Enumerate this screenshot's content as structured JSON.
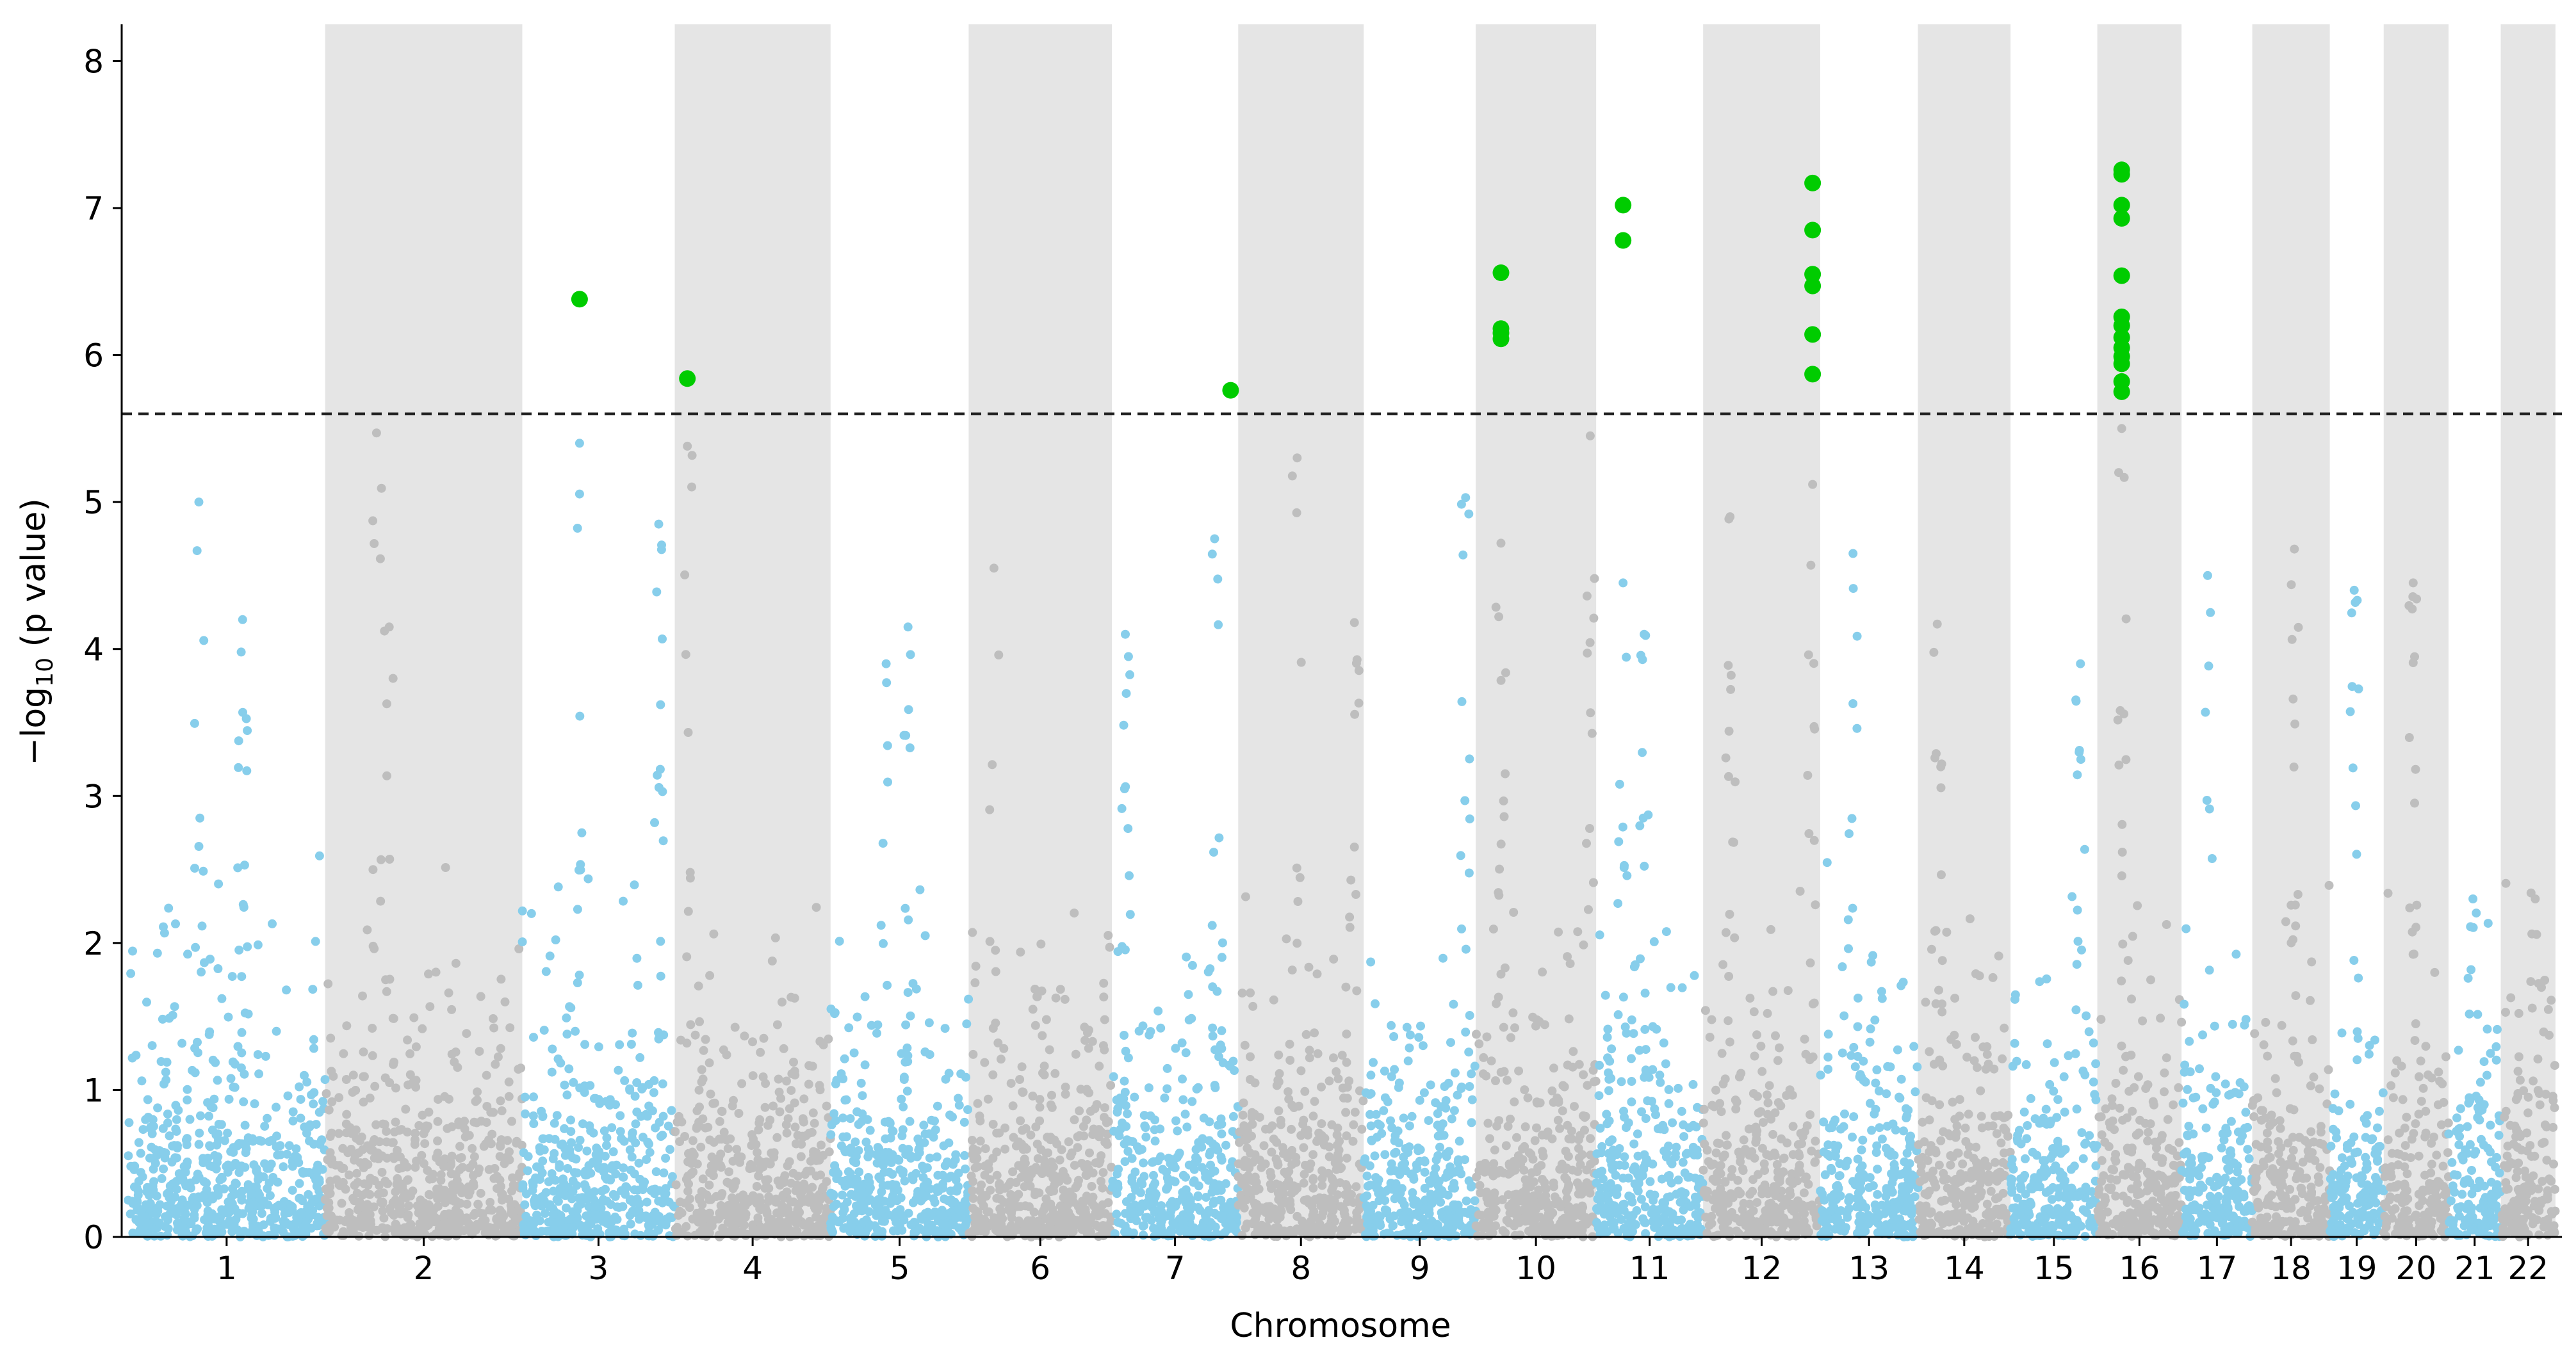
{
  "chart_data": {
    "type": "scatter",
    "subtype": "manhattan",
    "xlabel": "Chromosome",
    "ylabel_prefix": "−log",
    "ylabel_sub": "10",
    "ylabel_suffix": " (p value)",
    "ylim": [
      0,
      8.25
    ],
    "yticks": [
      "0",
      "1",
      "2",
      "3",
      "4",
      "5",
      "6",
      "7",
      "8"
    ],
    "threshold": 5.6,
    "colors": {
      "odd_chromosome": "#87ceeb",
      "even_chromosome": "#bebebe",
      "significant": "#00cc00",
      "band": "#e5e5e5",
      "threshold_line": "#222222"
    },
    "chromosomes": [
      {
        "label": "1",
        "start": 0,
        "end": 234
      },
      {
        "label": "2",
        "start": 234,
        "end": 468
      },
      {
        "label": "3",
        "start": 468,
        "end": 649
      },
      {
        "label": "4",
        "start": 649,
        "end": 834
      },
      {
        "label": "5",
        "start": 834,
        "end": 998
      },
      {
        "label": "6",
        "start": 998,
        "end": 1168
      },
      {
        "label": "7",
        "start": 1168,
        "end": 1318
      },
      {
        "label": "8",
        "start": 1318,
        "end": 1467
      },
      {
        "label": "9",
        "start": 1467,
        "end": 1600
      },
      {
        "label": "10",
        "start": 1600,
        "end": 1743
      },
      {
        "label": "11",
        "start": 1743,
        "end": 1870
      },
      {
        "label": "12",
        "start": 1870,
        "end": 2009
      },
      {
        "label": "13",
        "start": 2009,
        "end": 2125
      },
      {
        "label": "14",
        "start": 2125,
        "end": 2235
      },
      {
        "label": "15",
        "start": 2235,
        "end": 2338
      },
      {
        "label": "16",
        "start": 2338,
        "end": 2438
      },
      {
        "label": "17",
        "start": 2438,
        "end": 2522
      },
      {
        "label": "18",
        "start": 2522,
        "end": 2614
      },
      {
        "label": "19",
        "start": 2614,
        "end": 2678
      },
      {
        "label": "20",
        "start": 2678,
        "end": 2755
      },
      {
        "label": "21",
        "start": 2755,
        "end": 2817
      },
      {
        "label": "22",
        "start": 2817,
        "end": 2882
      }
    ],
    "peaks": [
      {
        "chr": "1",
        "pos": 84,
        "max": 5.0
      },
      {
        "chr": "1",
        "pos": 136,
        "max": 4.2
      },
      {
        "chr": "2",
        "pos": 310,
        "max": 4.15
      },
      {
        "chr": "2",
        "pos": 295,
        "max": 5.47
      },
      {
        "chr": "3",
        "pos": 536,
        "max": 5.4
      },
      {
        "chr": "3",
        "pos": 630,
        "max": 4.85
      },
      {
        "chr": "4",
        "pos": 664,
        "max": 5.38
      },
      {
        "chr": "5",
        "pos": 926,
        "max": 4.15
      },
      {
        "chr": "5",
        "pos": 900,
        "max": 3.9
      },
      {
        "chr": "6",
        "pos": 1028,
        "max": 4.55
      },
      {
        "chr": "7",
        "pos": 1290,
        "max": 4.75
      },
      {
        "chr": "7",
        "pos": 1184,
        "max": 4.1
      },
      {
        "chr": "8",
        "pos": 1388,
        "max": 5.3
      },
      {
        "chr": "8",
        "pos": 1456,
        "max": 4.18
      },
      {
        "chr": "9",
        "pos": 1588,
        "max": 5.03
      },
      {
        "chr": "10",
        "pos": 1630,
        "max": 4.72
      },
      {
        "chr": "10",
        "pos": 1736,
        "max": 5.45
      },
      {
        "chr": "11",
        "pos": 1775,
        "max": 4.45
      },
      {
        "chr": "11",
        "pos": 1800,
        "max": 4.1
      },
      {
        "chr": "12",
        "pos": 1902,
        "max": 4.9
      },
      {
        "chr": "12",
        "pos": 2000,
        "max": 5.12
      },
      {
        "chr": "13",
        "pos": 2048,
        "max": 4.65
      },
      {
        "chr": "14",
        "pos": 2148,
        "max": 4.17
      },
      {
        "chr": "15",
        "pos": 2318,
        "max": 3.9
      },
      {
        "chr": "16",
        "pos": 2367,
        "max": 5.5
      },
      {
        "chr": "17",
        "pos": 2469,
        "max": 4.5
      },
      {
        "chr": "18",
        "pos": 2572,
        "max": 4.68
      },
      {
        "chr": "19",
        "pos": 2643,
        "max": 4.4
      },
      {
        "chr": "20",
        "pos": 2713,
        "max": 4.45
      },
      {
        "chr": "21",
        "pos": 2784,
        "max": 2.3
      },
      {
        "chr": "22",
        "pos": 2858,
        "max": 2.3
      }
    ],
    "significant_points": [
      {
        "chr": "3",
        "pos": 536,
        "y": 6.38
      },
      {
        "chr": "4",
        "pos": 664,
        "y": 5.84
      },
      {
        "chr": "7",
        "pos": 1309,
        "y": 5.76
      },
      {
        "chr": "10",
        "pos": 1630,
        "y": 6.56
      },
      {
        "chr": "10",
        "pos": 1630,
        "y": 6.18
      },
      {
        "chr": "10",
        "pos": 1630,
        "y": 6.15
      },
      {
        "chr": "10",
        "pos": 1630,
        "y": 6.11
      },
      {
        "chr": "11",
        "pos": 1775,
        "y": 7.02
      },
      {
        "chr": "11",
        "pos": 1775,
        "y": 6.78
      },
      {
        "chr": "12",
        "pos": 2000,
        "y": 7.17
      },
      {
        "chr": "12",
        "pos": 2000,
        "y": 6.85
      },
      {
        "chr": "12",
        "pos": 2000,
        "y": 6.55
      },
      {
        "chr": "12",
        "pos": 2000,
        "y": 6.47
      },
      {
        "chr": "12",
        "pos": 2000,
        "y": 6.14
      },
      {
        "chr": "12",
        "pos": 2000,
        "y": 5.87
      },
      {
        "chr": "16",
        "pos": 2367,
        "y": 7.26
      },
      {
        "chr": "16",
        "pos": 2367,
        "y": 7.23
      },
      {
        "chr": "16",
        "pos": 2367,
        "y": 7.02
      },
      {
        "chr": "16",
        "pos": 2367,
        "y": 6.93
      },
      {
        "chr": "16",
        "pos": 2367,
        "y": 6.54
      },
      {
        "chr": "16",
        "pos": 2367,
        "y": 6.26
      },
      {
        "chr": "16",
        "pos": 2367,
        "y": 6.2
      },
      {
        "chr": "16",
        "pos": 2367,
        "y": 6.12
      },
      {
        "chr": "16",
        "pos": 2367,
        "y": 6.05
      },
      {
        "chr": "16",
        "pos": 2367,
        "y": 5.99
      },
      {
        "chr": "16",
        "pos": 2367,
        "y": 5.94
      },
      {
        "chr": "16",
        "pos": 2367,
        "y": 5.82
      },
      {
        "chr": "16",
        "pos": 2367,
        "y": 5.75
      }
    ]
  }
}
